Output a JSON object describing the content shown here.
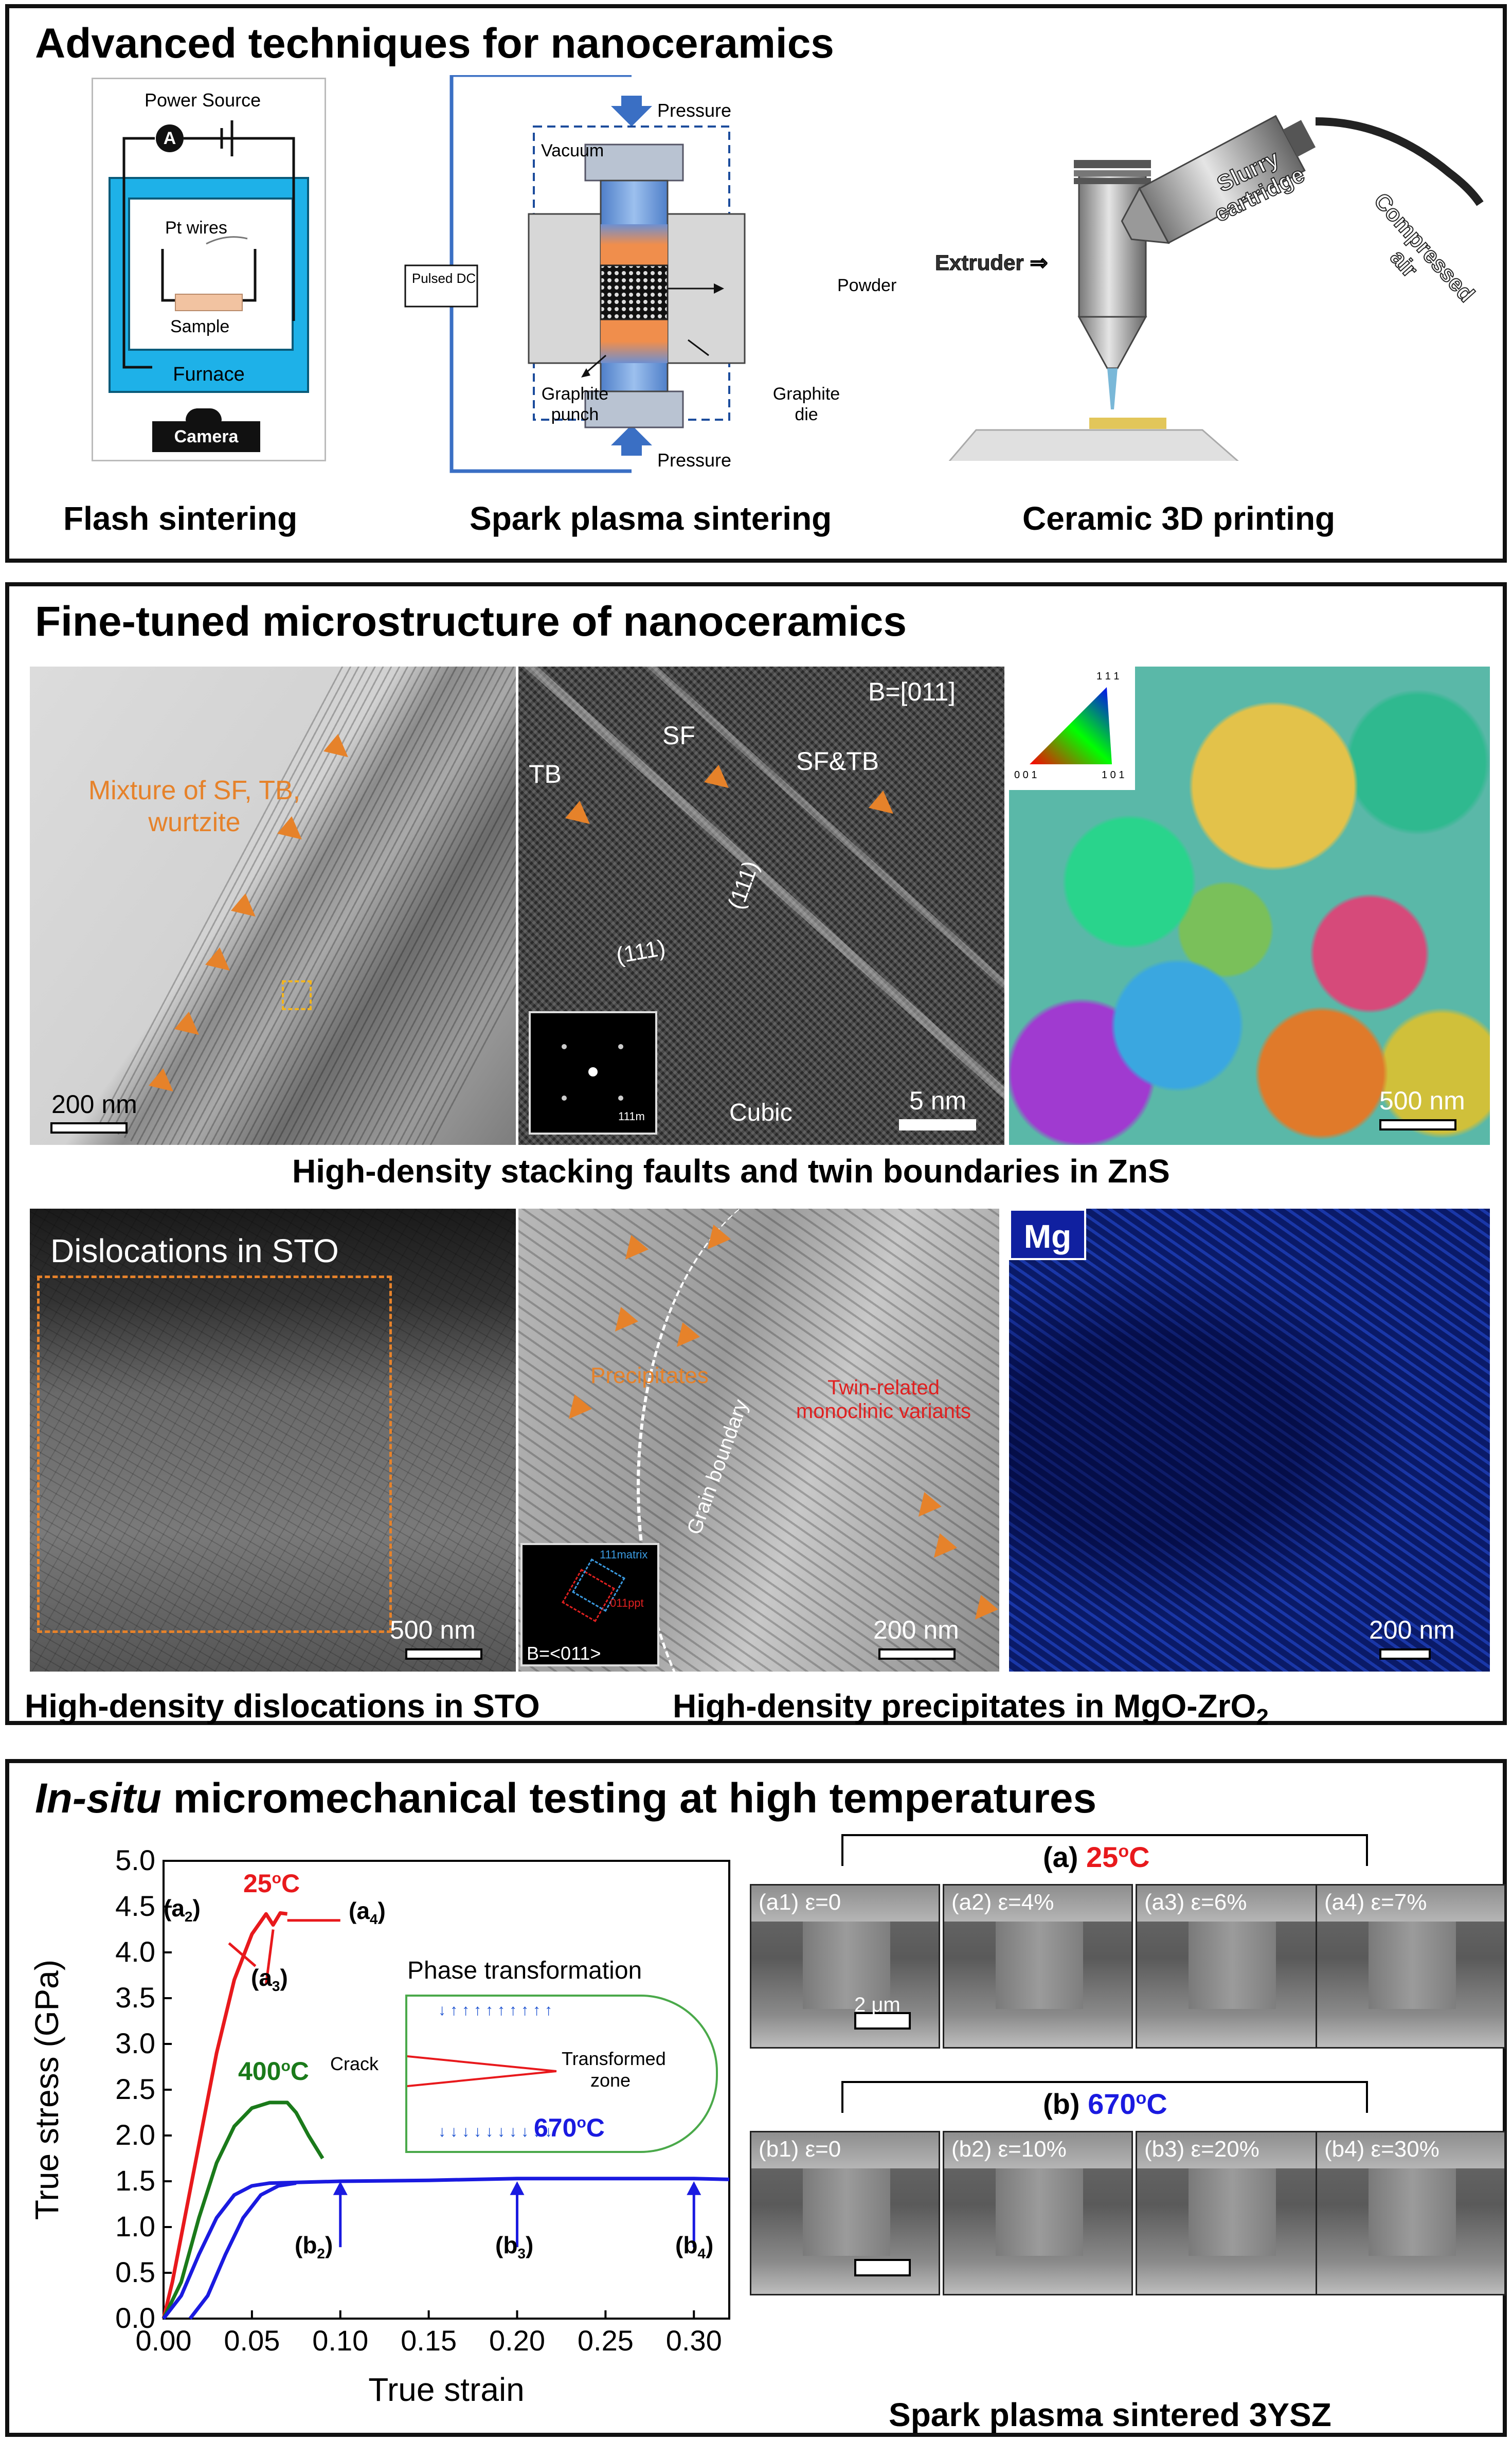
{
  "panel1": {
    "title": "Advanced techniques for nanoceramics",
    "flash": {
      "power_source": "Power Source",
      "ammeter": "A",
      "pt_wires": "Pt wires",
      "sample": "Sample",
      "furnace": "Furnace",
      "camera": "Camera",
      "caption": "Flash sintering"
    },
    "sps": {
      "pressure_top": "Pressure",
      "pressure_bottom": "Pressure",
      "vacuum": "Vacuum",
      "pulsed_dc": "Pulsed DC",
      "powder": "Powder",
      "graphite_punch": "Graphite punch",
      "graphite_die": "Graphite die",
      "caption": "Spark plasma sintering"
    },
    "printing": {
      "extruder": "Extruder",
      "slurry": "Slurry cartridge",
      "air": "Compressed air",
      "caption": "Ceramic 3D printing"
    }
  },
  "panel2": {
    "title": "Fine-tuned microstructure of nanoceramics",
    "img1": {
      "label": "Mixture of SF, TB, wurtzite",
      "scale": "200 nm"
    },
    "img2": {
      "zone": "B=[011]",
      "tb": "TB",
      "sf": "SF",
      "sftb": "SF&TB",
      "plane1": "(111)",
      "plane2": "(111)",
      "cubic": "Cubic",
      "scale": "5 nm",
      "fft": "111m"
    },
    "img3": {
      "tri_top": "1 1 1",
      "tri_left": "0 0 1",
      "tri_right": "1 0 1",
      "scale": "500 nm"
    },
    "caption_row1": "High-density stacking faults and twin boundaries in ZnS",
    "img4": {
      "label": "Dislocations in STO",
      "scale": "500 nm"
    },
    "img5": {
      "precipitates": "Precipitates",
      "twin": "Twin-related monoclinic variants",
      "grain": "Grain boundary",
      "zone": "B=<011>",
      "spot1": "111matrix",
      "spot2": "011ppt",
      "scale": "200 nm"
    },
    "img6": {
      "element": "Mg",
      "scale": "200 nm"
    },
    "caption_sto": "High-density dislocations in STO",
    "caption_mgo": "High-density precipitates in MgO-ZrO",
    "caption_mgo_sub": "2"
  },
  "panel3": {
    "title_italic": "In-situ",
    "title_rest": " micromechanical testing at high temperatures",
    "inset": {
      "title": "Phase transformation",
      "crack": "Crack",
      "zone": "Transformed zone"
    },
    "temp_labels": {
      "t25": "25",
      "t400": "400",
      "t670": "670",
      "unit": "C",
      "sup": "o"
    },
    "markers": {
      "a2": "(a",
      "a2s": "2",
      "a3": "(a",
      "a3s": "3",
      "a4": "(a",
      "a4s": "4",
      "b2": "(b",
      "b2s": "2",
      "b3": "(b",
      "b3s": "3",
      "b4": "(b",
      "b4s": "4"
    },
    "group_a": {
      "label": "(a)",
      "temp": "25",
      "sup": "o",
      "unit": "C"
    },
    "group_b": {
      "label": "(b)",
      "temp": "670",
      "sup": "o",
      "unit": "C"
    },
    "sem_a": [
      "(a1) ε=0",
      "(a2) ε=4%",
      "(a3) ε=6%",
      "(a4) ε=7%"
    ],
    "sem_b": [
      "(b1) ε=0",
      "(b2) ε=10%",
      "(b3) ε=20%",
      "(b4) ε=30%"
    ],
    "sem_scale": "2 μm",
    "caption": "Spark plasma sintered 3YSZ"
  },
  "chart_data": {
    "type": "line",
    "xlabel": "True strain",
    "ylabel": "True stress (GPa)",
    "xlim": [
      0.0,
      0.32
    ],
    "ylim": [
      0.0,
      5.0
    ],
    "xticks": [
      "0.00",
      "0.05",
      "0.10",
      "0.15",
      "0.20",
      "0.25",
      "0.30"
    ],
    "xtick_values": [
      0,
      0.05,
      0.1,
      0.15,
      0.2,
      0.25,
      0.3
    ],
    "yticks": [
      "0.0",
      "0.5",
      "1.0",
      "1.5",
      "2.0",
      "2.5",
      "3.0",
      "3.5",
      "4.0",
      "4.5",
      "5.0"
    ],
    "ytick_values": [
      0,
      0.5,
      1,
      1.5,
      2,
      2.5,
      3,
      3.5,
      4,
      4.5,
      5
    ],
    "colors": {
      "t25": "#e8191c",
      "t400": "#1a7a1a",
      "t670": "#1a1ae0"
    },
    "series": [
      {
        "name": "25oC",
        "color": "#e8191c",
        "x": [
          0,
          0.005,
          0.01,
          0.02,
          0.03,
          0.04,
          0.05,
          0.058,
          0.062,
          0.066,
          0.07
        ],
        "y": [
          0,
          0.4,
          0.9,
          1.9,
          2.9,
          3.7,
          4.2,
          4.42,
          4.3,
          4.43,
          4.42
        ]
      },
      {
        "name": "400oC",
        "color": "#1a7a1a",
        "x": [
          0,
          0.01,
          0.02,
          0.03,
          0.04,
          0.05,
          0.06,
          0.07,
          0.075,
          0.082,
          0.09
        ],
        "y": [
          0,
          0.4,
          1.1,
          1.7,
          2.1,
          2.3,
          2.36,
          2.36,
          2.25,
          2.0,
          1.75
        ]
      },
      {
        "name": "670oC",
        "color": "#1a1ae0",
        "x": [
          0,
          0.01,
          0.02,
          0.03,
          0.04,
          0.05,
          0.06,
          0.1,
          0.15,
          0.2,
          0.25,
          0.3,
          0.32
        ],
        "y": [
          0,
          0.25,
          0.7,
          1.1,
          1.35,
          1.45,
          1.48,
          1.5,
          1.51,
          1.53,
          1.53,
          1.53,
          1.52
        ]
      }
    ]
  }
}
